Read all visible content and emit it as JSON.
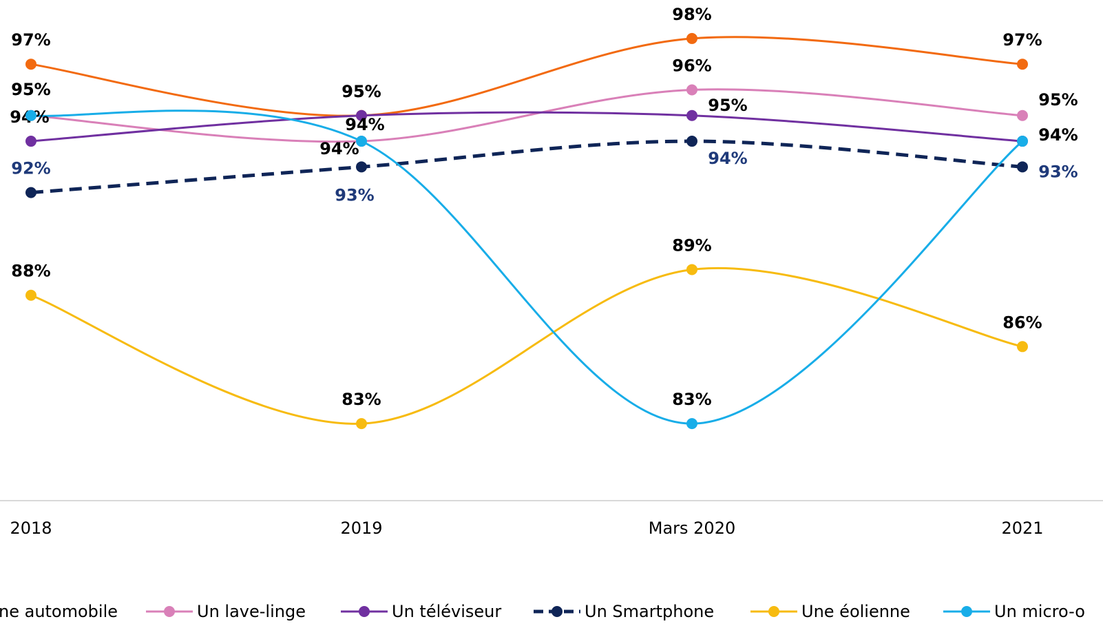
{
  "chart_data": {
    "type": "line",
    "categories": [
      "2018",
      "2019",
      "Mars 2020",
      "2021"
    ],
    "ylim": [
      80,
      99.5
    ],
    "series": [
      {
        "name": "ne automobile",
        "color": "#f26a10",
        "dashed": false,
        "values": [
          97,
          95,
          98,
          97
        ],
        "value_labels": [
          "97%",
          "95%",
          "98%",
          "97%"
        ]
      },
      {
        "name": "Un lave-linge",
        "color": "#d980b8",
        "dashed": false,
        "values": [
          95,
          94,
          96,
          95
        ],
        "value_labels": [
          "95%",
          "94%",
          "96%",
          "95%"
        ]
      },
      {
        "name": "Un téléviseur",
        "color": "#7030a0",
        "dashed": false,
        "values": [
          94,
          95,
          95,
          94
        ],
        "value_labels": [
          "94%",
          "95%",
          "95%",
          "94%"
        ]
      },
      {
        "name": "Un Smartphone",
        "color": "#0f2557",
        "dashed": true,
        "values": [
          92,
          93,
          94,
          93
        ],
        "value_labels": [
          "92%",
          "93%",
          "94%",
          "93%"
        ]
      },
      {
        "name": "Une éolienne",
        "color": "#f7bb10",
        "dashed": false,
        "values": [
          88,
          83,
          89,
          86
        ],
        "value_labels": [
          "88%",
          "83%",
          "89%",
          "86%"
        ]
      },
      {
        "name": "Un micro-o",
        "color": "#18ade8",
        "dashed": false,
        "values": [
          95,
          94,
          83,
          94
        ],
        "value_labels": [
          "95%",
          "94%",
          "83%",
          "94%"
        ]
      }
    ]
  }
}
